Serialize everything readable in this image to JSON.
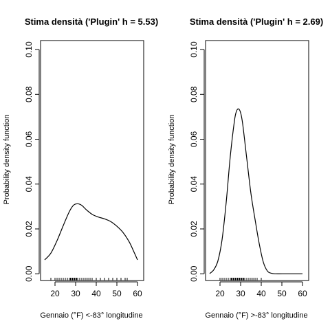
{
  "chart_data": [
    {
      "type": "line",
      "title": "Stima densità ('Plugin' h = 5.53)",
      "xlabel": "Gennaio (°F) <-83° longitudine",
      "ylabel": "Probability density function",
      "xlim": [
        13,
        63
      ],
      "ylim": [
        -0.003,
        0.104
      ],
      "xticks": [
        20,
        30,
        40,
        50,
        60
      ],
      "yticks": [
        0.0,
        0.02,
        0.04,
        0.06,
        0.08,
        0.1
      ],
      "ytick_labels": [
        "0.00",
        "0.02",
        "0.04",
        "0.06",
        "0.08",
        "0.10"
      ],
      "series": [
        {
          "x": [
            15,
            18,
            21,
            24,
            27,
            29,
            31,
            33,
            35,
            38,
            41,
            44,
            47,
            50,
            53,
            56,
            58,
            60
          ],
          "y": [
            0.0062,
            0.0092,
            0.0148,
            0.0215,
            0.0278,
            0.0306,
            0.0312,
            0.0305,
            0.0287,
            0.0265,
            0.0253,
            0.0245,
            0.0233,
            0.0212,
            0.0184,
            0.0142,
            0.0103,
            0.0062
          ]
        }
      ],
      "rug": [
        18,
        20,
        21,
        22,
        23,
        24,
        25,
        26,
        27,
        27.5,
        28,
        28.5,
        29,
        29.5,
        30,
        30.5,
        31,
        32,
        33,
        34,
        35,
        36,
        37,
        38,
        40,
        42,
        44,
        46,
        48,
        50,
        52,
        54,
        55
      ]
    },
    {
      "type": "line",
      "title": "Stima densità ('Plugin' h = 2.69)",
      "xlabel": "Gennaio (°F) >-83° longitudine",
      "ylabel": "Probability density function",
      "xlim": [
        13,
        63
      ],
      "ylim": [
        -0.003,
        0.104
      ],
      "xticks": [
        20,
        30,
        40,
        50,
        60
      ],
      "yticks": [
        0.0,
        0.02,
        0.04,
        0.06,
        0.08,
        0.1
      ],
      "ytick_labels": [
        "0.00",
        "0.02",
        "0.04",
        "0.06",
        "0.08",
        "0.10"
      ],
      "series": [
        {
          "x": [
            15,
            17,
            19,
            21,
            23,
            25,
            27,
            28,
            29,
            30,
            31,
            33,
            35,
            37,
            39,
            41,
            43,
            45,
            47,
            50,
            55,
            60
          ],
          "y": [
            0.0001,
            0.0018,
            0.0058,
            0.0152,
            0.0318,
            0.0525,
            0.0682,
            0.0725,
            0.0735,
            0.0718,
            0.0668,
            0.0512,
            0.0358,
            0.0242,
            0.0135,
            0.0052,
            0.0012,
            0.0002,
            0.0,
            0.0,
            0.0,
            0.0
          ]
        }
      ],
      "rug": [
        20,
        21,
        22,
        23,
        24,
        25,
        25.5,
        26,
        26.5,
        27,
        27.5,
        28,
        28.5,
        29,
        29.5,
        30,
        30.5,
        31,
        31.5,
        32,
        33,
        34,
        35,
        36,
        37,
        38,
        40
      ]
    }
  ]
}
